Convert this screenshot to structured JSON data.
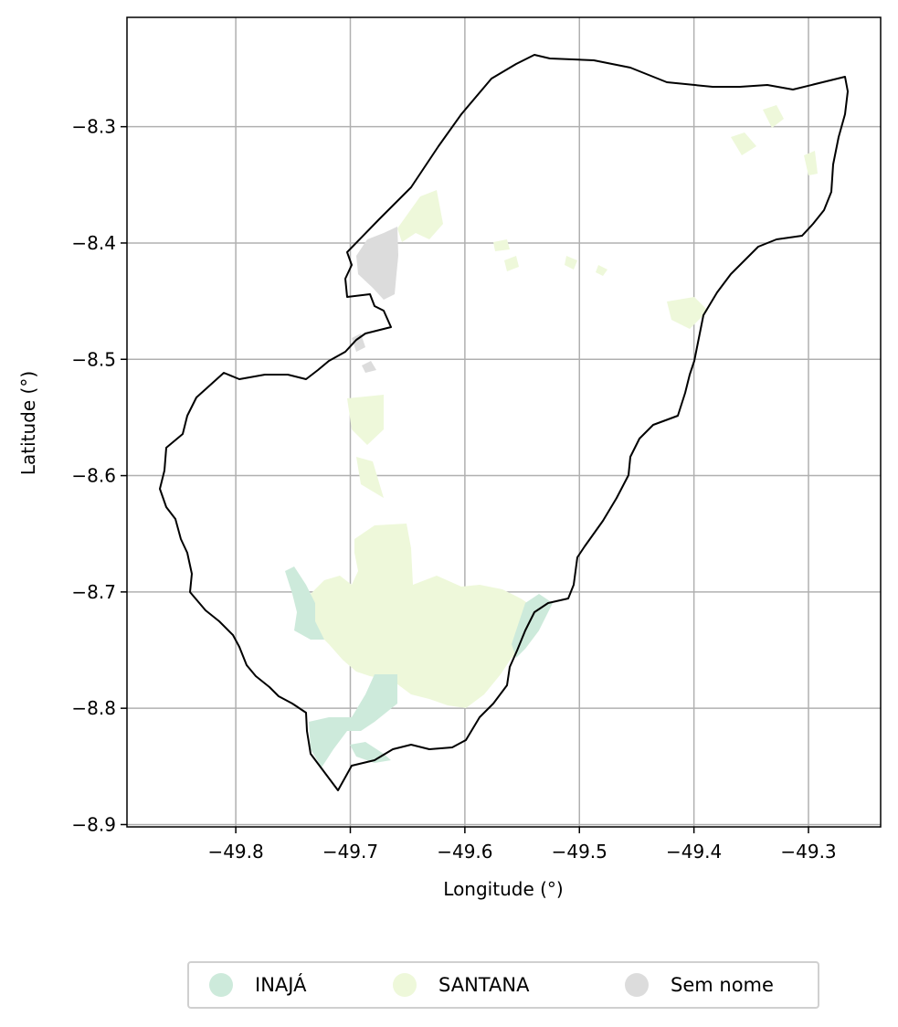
{
  "chart_data": {
    "type": "map",
    "xlabel": "Longitude (°)",
    "ylabel": "Latitude (°)",
    "x_ticks": [
      -49.8,
      -49.7,
      -49.6,
      -49.5,
      -49.4,
      -49.3
    ],
    "x_tick_labels": [
      "−49.8",
      "−49.7",
      "−49.6",
      "−49.5",
      "−49.4",
      "−49.3"
    ],
    "y_ticks": [
      -8.3,
      -8.4,
      -8.5,
      -8.6,
      -8.7,
      -8.8,
      -8.9
    ],
    "y_tick_labels": [
      "−8.3",
      "−8.4",
      "−8.5",
      "−8.6",
      "−8.7",
      "−8.8",
      "−8.9"
    ],
    "xlim": [
      -49.895,
      -49.237
    ],
    "ylim": [
      -8.902,
      -8.206
    ],
    "grid": true,
    "legend_position": "bottom-center",
    "legend": [
      {
        "name": "INAJÁ",
        "color": "#cdeadb"
      },
      {
        "name": "SANTANA",
        "color": "#eef8da"
      },
      {
        "name": "Sem nome",
        "color": "#dcdcdc"
      }
    ]
  },
  "colors": {
    "boundary": "#000000",
    "grid": "#b0b0b0",
    "inaja": "#cdeadb",
    "santana": "#eef8da",
    "sem_nome": "#dcdcdc"
  }
}
